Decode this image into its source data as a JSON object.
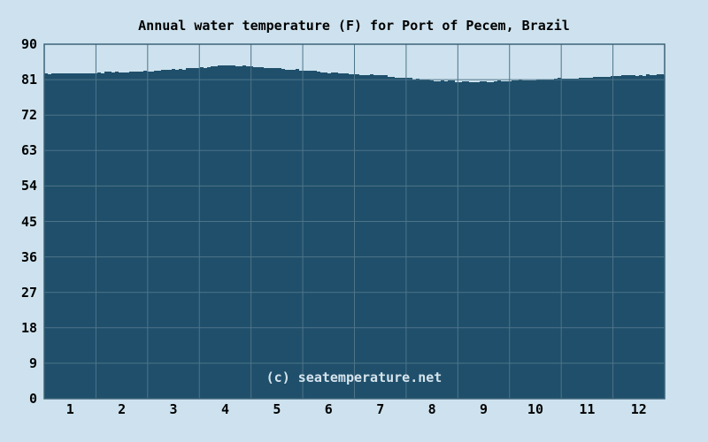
{
  "chart": {
    "title": "Annual water temperature (F) for Port of Pecem, Brazil",
    "watermark": "(c) seatemperature.net"
  },
  "chart_data": {
    "type": "area",
    "title": "Annual water temperature (F) for Port of Pecem, Brazil",
    "xlabel": "",
    "ylabel": "",
    "categories": [
      "1",
      "2",
      "3",
      "4",
      "5",
      "6",
      "7",
      "8",
      "9",
      "10",
      "11",
      "12"
    ],
    "x": [
      1,
      2,
      3,
      4,
      5,
      6,
      7,
      8,
      9,
      10,
      11,
      12
    ],
    "values": [
      82.6,
      82.9,
      83.5,
      84.6,
      83.9,
      82.8,
      82.0,
      80.7,
      80.4,
      81.0,
      81.5,
      82.1
    ],
    "edge_values": [
      82.5,
      82.3
    ],
    "y_ticks": [
      90,
      81,
      72,
      63,
      54,
      45,
      36,
      27,
      18,
      9,
      0
    ],
    "ylim": [
      0,
      90
    ],
    "unit_in_title": "F",
    "grid": true,
    "legend_position": "none",
    "colors": {
      "background": "#cde2ee",
      "fill": "#1f4f6b",
      "gridline": "#4e7489",
      "border": "#3c6379",
      "text": "#000000",
      "watermark": "#d6e4ed"
    }
  }
}
